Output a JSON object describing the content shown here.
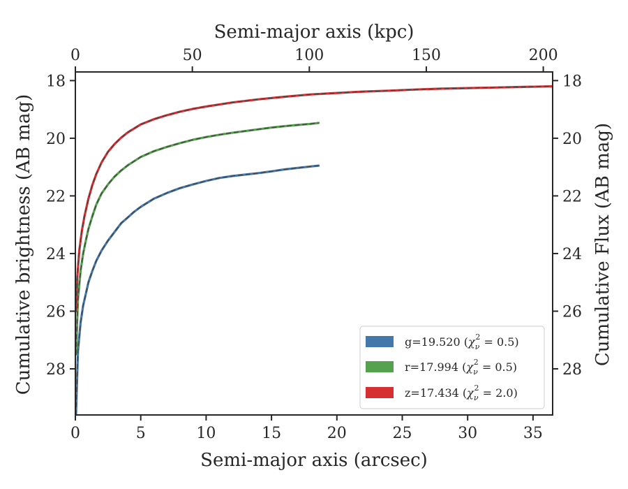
{
  "chart_data": {
    "type": "line",
    "title": "",
    "xlabel": "Semi-major axis (arcsec)",
    "x2label": "Semi-major axis (kpc)",
    "ylabel": "Cumulative brightness (AB mag)",
    "y2label": "Cumulative Flux (AB mag)",
    "xlim": [
      0,
      36.5
    ],
    "x2lim": [
      0,
      204
    ],
    "ylim": [
      29.6,
      17.7
    ],
    "y_inverted": true,
    "xticks": [
      0,
      5,
      10,
      15,
      20,
      25,
      30,
      35
    ],
    "x2ticks": [
      0,
      50,
      100,
      150,
      200
    ],
    "yticks": [
      18,
      20,
      22,
      24,
      26,
      28
    ],
    "grid": false,
    "legend_position": "lower-right",
    "series": [
      {
        "name": "g=19.520 (χ²ᵥ = 0.5)",
        "label_main": "g=19.520 (",
        "label_tail": " = 0.5)",
        "color": "#4477aa",
        "x": [
          0.05,
          0.2,
          0.4,
          0.6,
          0.8,
          1.0,
          1.3,
          1.6,
          2.0,
          2.5,
          3.0,
          3.5,
          4.0,
          4.5,
          5.0,
          6.0,
          7.0,
          8.0,
          9.0,
          10.0,
          11.0,
          12.0,
          13.0,
          14.0,
          15.0,
          16.0,
          17.0,
          18.0,
          18.6
        ],
        "y": [
          29.6,
          27.4,
          26.4,
          25.8,
          25.4,
          25.0,
          24.6,
          24.25,
          23.9,
          23.55,
          23.25,
          22.95,
          22.75,
          22.55,
          22.38,
          22.1,
          21.9,
          21.73,
          21.6,
          21.48,
          21.38,
          21.31,
          21.26,
          21.21,
          21.15,
          21.08,
          21.03,
          20.98,
          20.95
        ]
      },
      {
        "name": "r=17.994 (χ²ᵥ = 0.5)",
        "label_main": "r=17.994 (",
        "label_tail": " = 0.5)",
        "color": "#55a14d",
        "x": [
          0.05,
          0.2,
          0.4,
          0.6,
          0.8,
          1.0,
          1.3,
          1.6,
          2.0,
          2.5,
          3.0,
          3.5,
          4.0,
          5.0,
          6.0,
          7.0,
          8.0,
          9.0,
          10.0,
          11.0,
          12.0,
          13.0,
          14.0,
          15.0,
          16.0,
          17.0,
          18.0,
          18.6
        ],
        "y": [
          27.5,
          25.6,
          24.6,
          24.0,
          23.55,
          23.15,
          22.7,
          22.3,
          21.92,
          21.6,
          21.33,
          21.12,
          20.94,
          20.65,
          20.45,
          20.3,
          20.17,
          20.05,
          19.96,
          19.88,
          19.81,
          19.75,
          19.69,
          19.63,
          19.58,
          19.54,
          19.5,
          19.47
        ]
      },
      {
        "name": "z=17.434 (χ²ᵥ = 2.0)",
        "label_main": "z=17.434 (",
        "label_tail": " = 2.0)",
        "color": "#d62f32",
        "x": [
          0.05,
          0.15,
          0.3,
          0.5,
          0.7,
          1.0,
          1.3,
          1.6,
          2.0,
          2.5,
          3.0,
          3.5,
          4.0,
          5.0,
          6.0,
          7.0,
          8.0,
          9.0,
          10.0,
          12.0,
          14.0,
          16.0,
          18.0,
          20.0,
          22.0,
          24.0,
          26.0,
          28.0,
          30.0,
          32.0,
          34.0,
          36.4
        ],
        "y": [
          26.0,
          24.8,
          23.9,
          23.2,
          22.7,
          22.1,
          21.62,
          21.24,
          20.84,
          20.47,
          20.2,
          19.98,
          19.8,
          19.52,
          19.34,
          19.2,
          19.08,
          18.98,
          18.9,
          18.76,
          18.65,
          18.56,
          18.48,
          18.43,
          18.38,
          18.35,
          18.31,
          18.28,
          18.26,
          18.24,
          18.22,
          18.2
        ]
      }
    ]
  }
}
